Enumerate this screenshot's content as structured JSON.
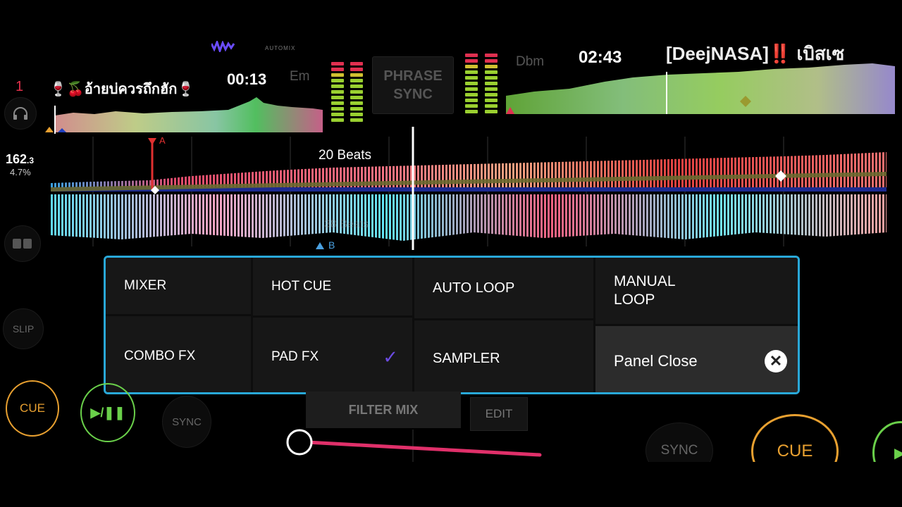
{
  "left_deck": {
    "deck_number": "1",
    "title": "🍷🍒อ้ายบ่ควรถึกฮัก🍷",
    "time": "00:13",
    "key": "Em",
    "bpm": "162",
    "bpm_decimal": ".3",
    "pitch": "4.7%"
  },
  "right_deck": {
    "title": "[DeejNASA]‼️ เบิสเซ",
    "time": "02:43",
    "key": "Dbm"
  },
  "center": {
    "automix_label": "AUTOMIX",
    "phrase_sync_line1": "PHRASE",
    "phrase_sync_line2": "SYNC"
  },
  "waveform": {
    "beats_label": "20 Beats",
    "ghost_label": "38 Beats",
    "marker_a": "A",
    "marker_b": "B"
  },
  "left_controls": {
    "slip": "SLIP"
  },
  "panel": {
    "mixer": "MIXER",
    "hot_cue": "HOT CUE",
    "auto_loop": "AUTO LOOP",
    "manual_loop": "MANUAL\nLOOP",
    "combo_fx": "COMBO FX",
    "pad_fx": "PAD FX",
    "sampler": "SAMPLER",
    "panel_close": "Panel Close"
  },
  "transport": {
    "cue_left": "CUE",
    "play_pause": "▶/❚❚",
    "sync_left": "SYNC",
    "sync_right": "SYNC",
    "cue_right": "CUE"
  },
  "filter": {
    "filter_mix": "FILTER MIX",
    "edit": "EDIT"
  },
  "colors": {
    "panel_border": "#29a8d8",
    "cue_orange": "#e8a030",
    "play_green": "#6ad04a",
    "check_purple": "#6b4be0",
    "crossfader_pink": "#e0306a"
  }
}
